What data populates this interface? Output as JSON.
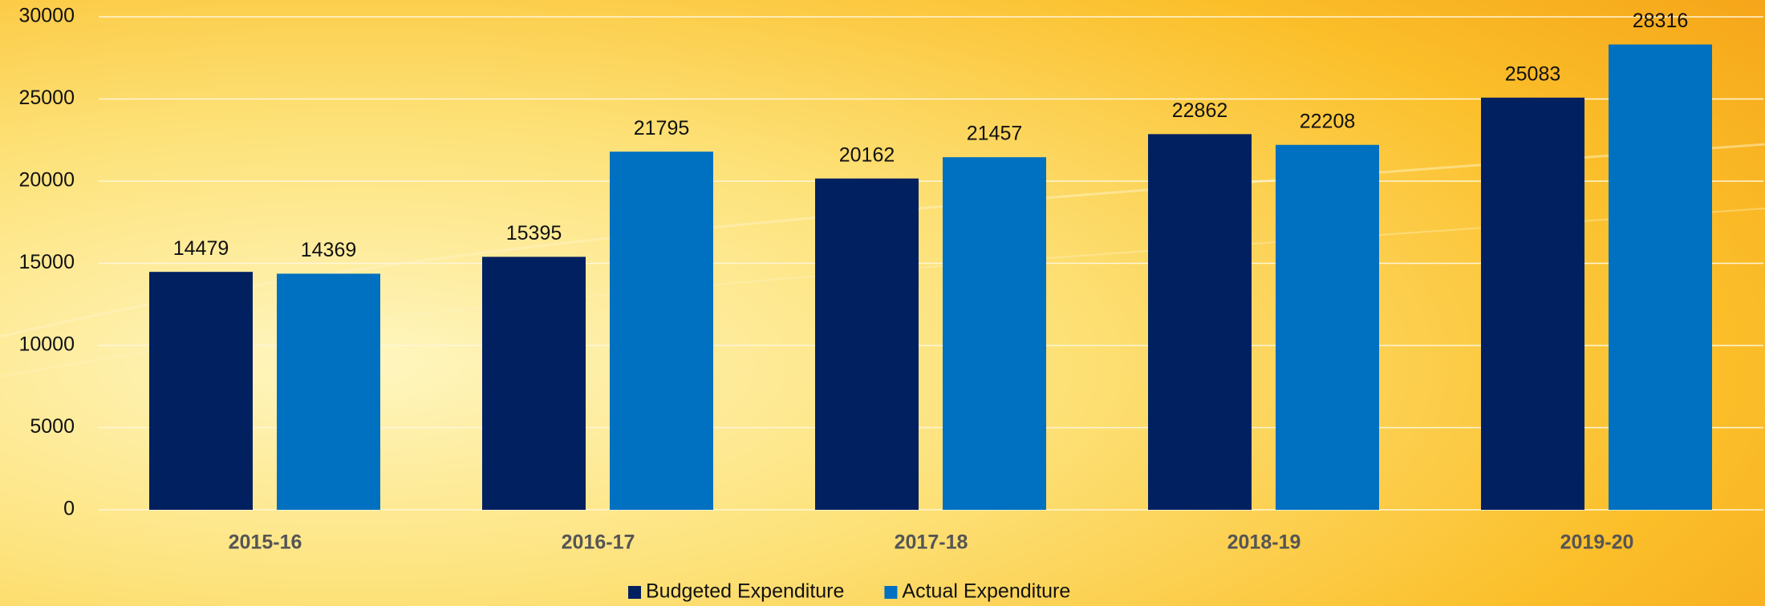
{
  "chart_data": {
    "type": "bar",
    "categories": [
      "2015-16",
      "2016-17",
      "2017-18",
      "2018-19",
      "2019-20"
    ],
    "series": [
      {
        "name": "Budgeted Expenditure",
        "color": "#002060",
        "values": [
          14479,
          15395,
          20162,
          22862,
          25083
        ]
      },
      {
        "name": "Actual Expenditure",
        "color": "#0070c0",
        "values": [
          14369,
          21795,
          21457,
          22208,
          28316
        ]
      }
    ],
    "ylim": [
      0,
      30000
    ],
    "yticks": [
      0,
      5000,
      10000,
      15000,
      20000,
      25000,
      30000
    ],
    "grid": true,
    "legend": "bottom"
  }
}
